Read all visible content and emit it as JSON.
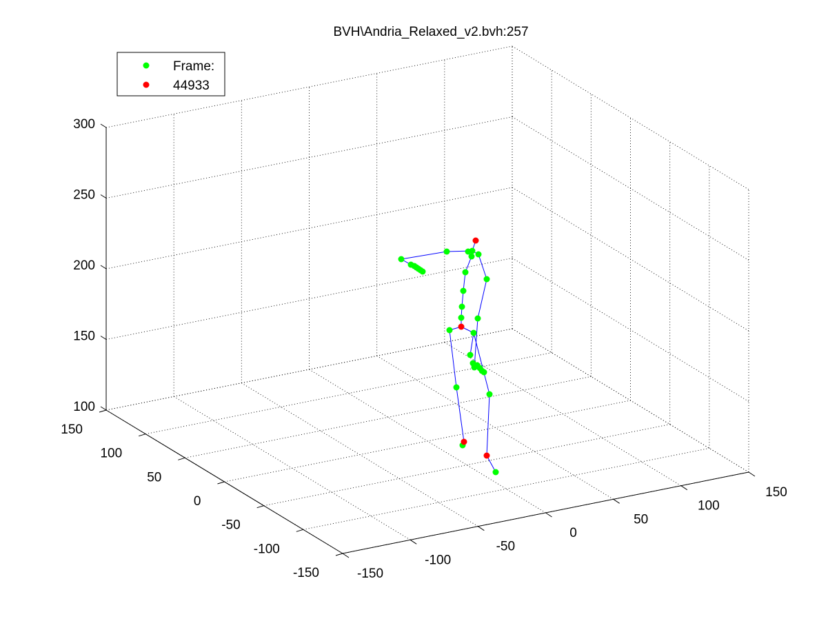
{
  "chart_data": {
    "type": "scatter",
    "title": "BVH\\Andria_Relaxed_v2.bvh:257",
    "legend": {
      "placement": "top-left",
      "entries": [
        {
          "label": "Frame:",
          "color": "#00ff00"
        },
        {
          "label": "44933",
          "color": "#ff0000"
        }
      ]
    },
    "grid": true,
    "z_ticks": [
      "300",
      "250",
      "200",
      "150",
      "100"
    ],
    "y_ticks": [
      "150",
      "100",
      "50",
      "0",
      "-50",
      "-100",
      "-150"
    ],
    "x_ticks": [
      "-150",
      "-100",
      "-50",
      "0",
      "50",
      "100",
      "150"
    ],
    "ranges": {
      "x": [
        -150,
        150
      ],
      "y": [
        -150,
        150
      ],
      "z": [
        100,
        300
      ]
    },
    "colors": {
      "joint": "#00ff00",
      "end_site": "#ff0000",
      "bone": "#0000ff"
    },
    "joints_projected": [
      [
        690,
        349,
        "r"
      ],
      [
        685,
        364,
        "g"
      ],
      [
        679,
        365,
        "g"
      ],
      [
        694,
        369,
        "g"
      ],
      [
        684,
        372,
        "g"
      ],
      [
        648,
        365,
        "g"
      ],
      [
        582,
        376,
        "g"
      ],
      [
        596,
        384,
        "g"
      ],
      [
        601,
        386,
        "g"
      ],
      [
        604,
        388,
        "g"
      ],
      [
        607,
        390,
        "g"
      ],
      [
        610,
        392,
        "g"
      ],
      [
        613,
        394,
        "g"
      ],
      [
        675,
        395,
        "g"
      ],
      [
        706,
        405,
        "g"
      ],
      [
        672,
        422,
        "g"
      ],
      [
        670,
        445,
        "g"
      ],
      [
        693,
        462,
        "g"
      ],
      [
        669,
        461,
        "g"
      ],
      [
        669,
        474,
        "r"
      ],
      [
        652,
        479,
        "g"
      ],
      [
        687,
        483,
        "g"
      ],
      [
        682,
        515,
        "g"
      ],
      [
        686,
        527,
        "g"
      ],
      [
        688,
        533,
        "g"
      ],
      [
        692,
        530,
        "g"
      ],
      [
        696,
        534,
        "g"
      ],
      [
        699,
        538,
        "g"
      ],
      [
        702,
        540,
        "g"
      ],
      [
        662,
        562,
        "g"
      ],
      [
        710,
        572,
        "g"
      ],
      [
        671,
        646,
        "g"
      ],
      [
        673,
        641,
        "r"
      ],
      [
        706,
        661,
        "r"
      ],
      [
        719,
        685,
        "g"
      ]
    ],
    "bones_projected": [
      [
        [
          685,
          364
        ],
        [
          690,
          349
        ]
      ],
      [
        [
          685,
          364
        ],
        [
          648,
          365
        ]
      ],
      [
        [
          648,
          365
        ],
        [
          582,
          376
        ]
      ],
      [
        [
          582,
          376
        ],
        [
          596,
          384
        ]
      ],
      [
        [
          596,
          384
        ],
        [
          613,
          394
        ]
      ],
      [
        [
          685,
          364
        ],
        [
          694,
          369
        ]
      ],
      [
        [
          694,
          369
        ],
        [
          706,
          405
        ]
      ],
      [
        [
          706,
          405
        ],
        [
          693,
          462
        ]
      ],
      [
        [
          693,
          462
        ],
        [
          688,
          533
        ]
      ],
      [
        [
          688,
          533
        ],
        [
          702,
          540
        ]
      ],
      [
        [
          684,
          372
        ],
        [
          675,
          395
        ]
      ],
      [
        [
          675,
          395
        ],
        [
          672,
          422
        ]
      ],
      [
        [
          672,
          422
        ],
        [
          670,
          445
        ]
      ],
      [
        [
          670,
          445
        ],
        [
          669,
          461
        ]
      ],
      [
        [
          669,
          461
        ],
        [
          669,
          474
        ]
      ],
      [
        [
          669,
          474
        ],
        [
          652,
          479
        ]
      ],
      [
        [
          669,
          474
        ],
        [
          687,
          483
        ]
      ],
      [
        [
          652,
          479
        ],
        [
          662,
          562
        ]
      ],
      [
        [
          662,
          562
        ],
        [
          673,
          641
        ]
      ],
      [
        [
          687,
          483
        ],
        [
          682,
          515
        ]
      ],
      [
        [
          687,
          483
        ],
        [
          710,
          572
        ]
      ],
      [
        [
          710,
          572
        ],
        [
          706,
          661
        ]
      ],
      [
        [
          706,
          661
        ],
        [
          719,
          685
        ]
      ]
    ]
  }
}
